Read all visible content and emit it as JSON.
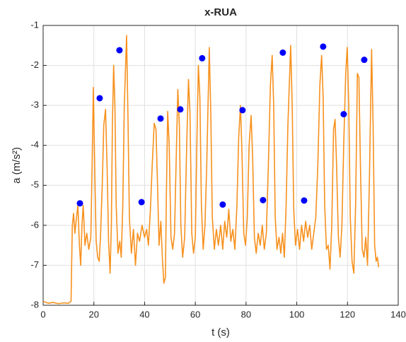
{
  "chart_data": {
    "type": "line",
    "title": "x-RUA",
    "x_label": "t (s)",
    "y_label": "a (m/s²)",
    "xlim": [
      0,
      140
    ],
    "xticks": [
      0,
      20,
      40,
      60,
      80,
      100,
      120,
      140
    ],
    "ylim": [
      -8,
      -1
    ],
    "yticks": [
      -8,
      -7,
      -6,
      -5,
      -4,
      -3,
      -2,
      -1
    ],
    "grid": true,
    "series": [
      {
        "color": "#f7911e",
        "x": [
          0,
          2,
          4,
          6,
          8,
          10,
          11,
          11.5,
          12,
          12.5,
          13,
          13.7,
          14.3,
          14.8,
          15.3,
          15.8,
          16.5,
          17.2,
          18,
          18.8,
          19.3,
          19.8,
          20.4,
          20.9,
          21.5,
          22.1,
          22.6,
          23.3,
          23.9,
          24.6,
          25.2,
          25.8,
          26.4,
          26.9,
          27.3,
          27.8,
          28.3,
          28.8,
          29.5,
          30.2,
          30.8,
          31.4,
          32,
          32.9,
          33.5,
          34,
          34.8,
          35.6,
          36.4,
          37.2,
          38,
          39,
          40,
          40.8,
          41.5,
          42.3,
          43,
          43.8,
          44.5,
          45.1,
          45.7,
          46.4,
          47,
          47.6,
          48.2,
          48.6,
          49.1,
          49.7,
          50.4,
          51.1,
          51.8,
          52.4,
          53.1,
          53.7,
          54.3,
          55,
          55.8,
          56.6,
          57.3,
          57.9,
          58.6,
          59.3,
          60,
          60.6,
          61.2,
          61.8,
          62.4,
          63.1,
          63.8,
          64.5,
          65.5,
          66.1,
          66.7,
          67.5,
          68.3,
          69.1,
          70,
          70.8,
          71.6,
          72.4,
          73.2,
          74,
          74.8,
          75.6,
          76.4,
          77.1,
          77.8,
          78.4,
          79.1,
          79.8,
          80.5,
          81.2,
          82,
          82.6,
          83.3,
          84,
          84.8,
          85.6,
          86.4,
          87.2,
          88,
          88.8,
          89.6,
          90.3,
          90.9,
          91.5,
          92.2,
          93,
          93.7,
          94.4,
          95.1,
          95.8,
          96.5,
          97.6,
          98.2,
          98.8,
          99.5,
          100.3,
          101.1,
          101.9,
          102.7,
          103.5,
          104.3,
          105.1,
          105.9,
          106.7,
          107.5,
          108.3,
          109.1,
          109.8,
          110.4,
          111,
          111.7,
          112.4,
          113.1,
          113.8,
          114.5,
          115.1,
          115.7,
          116.4,
          117.1,
          117.8,
          118.5,
          119.3,
          119.9,
          120.5,
          121.1,
          121.8,
          122.5,
          123.2,
          123.9,
          124.5,
          125.1,
          125.8,
          126.5,
          127.2,
          127.9,
          128.6,
          129.5,
          130.1,
          130.7,
          131.3,
          131.8,
          132.3
        ],
        "values": [
          -7.9,
          -7.95,
          -7.93,
          -7.96,
          -7.94,
          -7.95,
          -7.9,
          -6.0,
          -5.7,
          -6.2,
          -5.9,
          -5.5,
          -6.5,
          -7.0,
          -6.0,
          -5.5,
          -6.5,
          -6.2,
          -6.6,
          -6.3,
          -4.5,
          -2.55,
          -4.8,
          -6.4,
          -6.8,
          -6.9,
          -6.3,
          -5.0,
          -3.5,
          -3.1,
          -4.5,
          -6.4,
          -7.2,
          -6.0,
          -3.5,
          -2.0,
          -3.0,
          -5.5,
          -6.7,
          -6.4,
          -6.8,
          -5.5,
          -3.0,
          -1.25,
          -3.5,
          -5.8,
          -6.7,
          -6.1,
          -7.0,
          -6.2,
          -6.4,
          -6.0,
          -6.3,
          -6.1,
          -6.5,
          -5.6,
          -4.5,
          -3.45,
          -3.6,
          -5.0,
          -6.5,
          -5.9,
          -6.8,
          -7.45,
          -7.3,
          -5.2,
          -3.15,
          -4.0,
          -6.3,
          -6.6,
          -6.2,
          -4.5,
          -2.6,
          -3.5,
          -6.0,
          -6.8,
          -6.3,
          -4.0,
          -2.35,
          -3.2,
          -6.2,
          -6.7,
          -6.3,
          -4.0,
          -2.0,
          -2.8,
          -5.5,
          -6.6,
          -6.0,
          -4.5,
          -1.55,
          -3.2,
          -5.8,
          -6.6,
          -6.1,
          -6.5,
          -6.0,
          -6.6,
          -5.9,
          -6.3,
          -5.6,
          -6.4,
          -6.1,
          -6.6,
          -5.5,
          -3.8,
          -3.0,
          -4.2,
          -6.2,
          -6.5,
          -5.8,
          -4.0,
          -3.25,
          -4.3,
          -6.3,
          -6.7,
          -6.2,
          -6.5,
          -6.0,
          -6.6,
          -6.2,
          -4.5,
          -2.5,
          -1.75,
          -3.0,
          -5.8,
          -6.6,
          -6.3,
          -6.7,
          -6.2,
          -6.8,
          -5.5,
          -3.5,
          -1.5,
          -3.0,
          -5.6,
          -6.5,
          -6.1,
          -6.6,
          -6.0,
          -6.4,
          -5.9,
          -6.3,
          -6.0,
          -6.6,
          -6.2,
          -5.8,
          -4.5,
          -2.5,
          -1.75,
          -2.8,
          -5.5,
          -6.6,
          -6.5,
          -7.1,
          -6.0,
          -3.6,
          -3.35,
          -4.5,
          -6.3,
          -6.8,
          -6.0,
          -4.0,
          -2.2,
          -1.55,
          -3.0,
          -5.8,
          -6.9,
          -7.2,
          -5.5,
          -2.2,
          -2.3,
          -4.5,
          -6.6,
          -6.8,
          -6.3,
          -7.0,
          -5.0,
          -1.6,
          -3.5,
          -6.5,
          -6.9,
          -6.8,
          -7.05
        ]
      },
      {
        "type": "scatter",
        "color": "#0000ff",
        "x": [
          14.5,
          22.3,
          30.1,
          38.8,
          46.3,
          54.1,
          62.7,
          70.8,
          78.6,
          86.7,
          94.5,
          102.9,
          110.4,
          118.5,
          126.6
        ],
        "values": [
          -5.45,
          -2.82,
          -1.62,
          -5.42,
          -3.33,
          -3.1,
          -1.82,
          -5.48,
          -3.12,
          -5.37,
          -1.68,
          -5.38,
          -1.53,
          -3.22,
          -1.86
        ]
      }
    ]
  }
}
